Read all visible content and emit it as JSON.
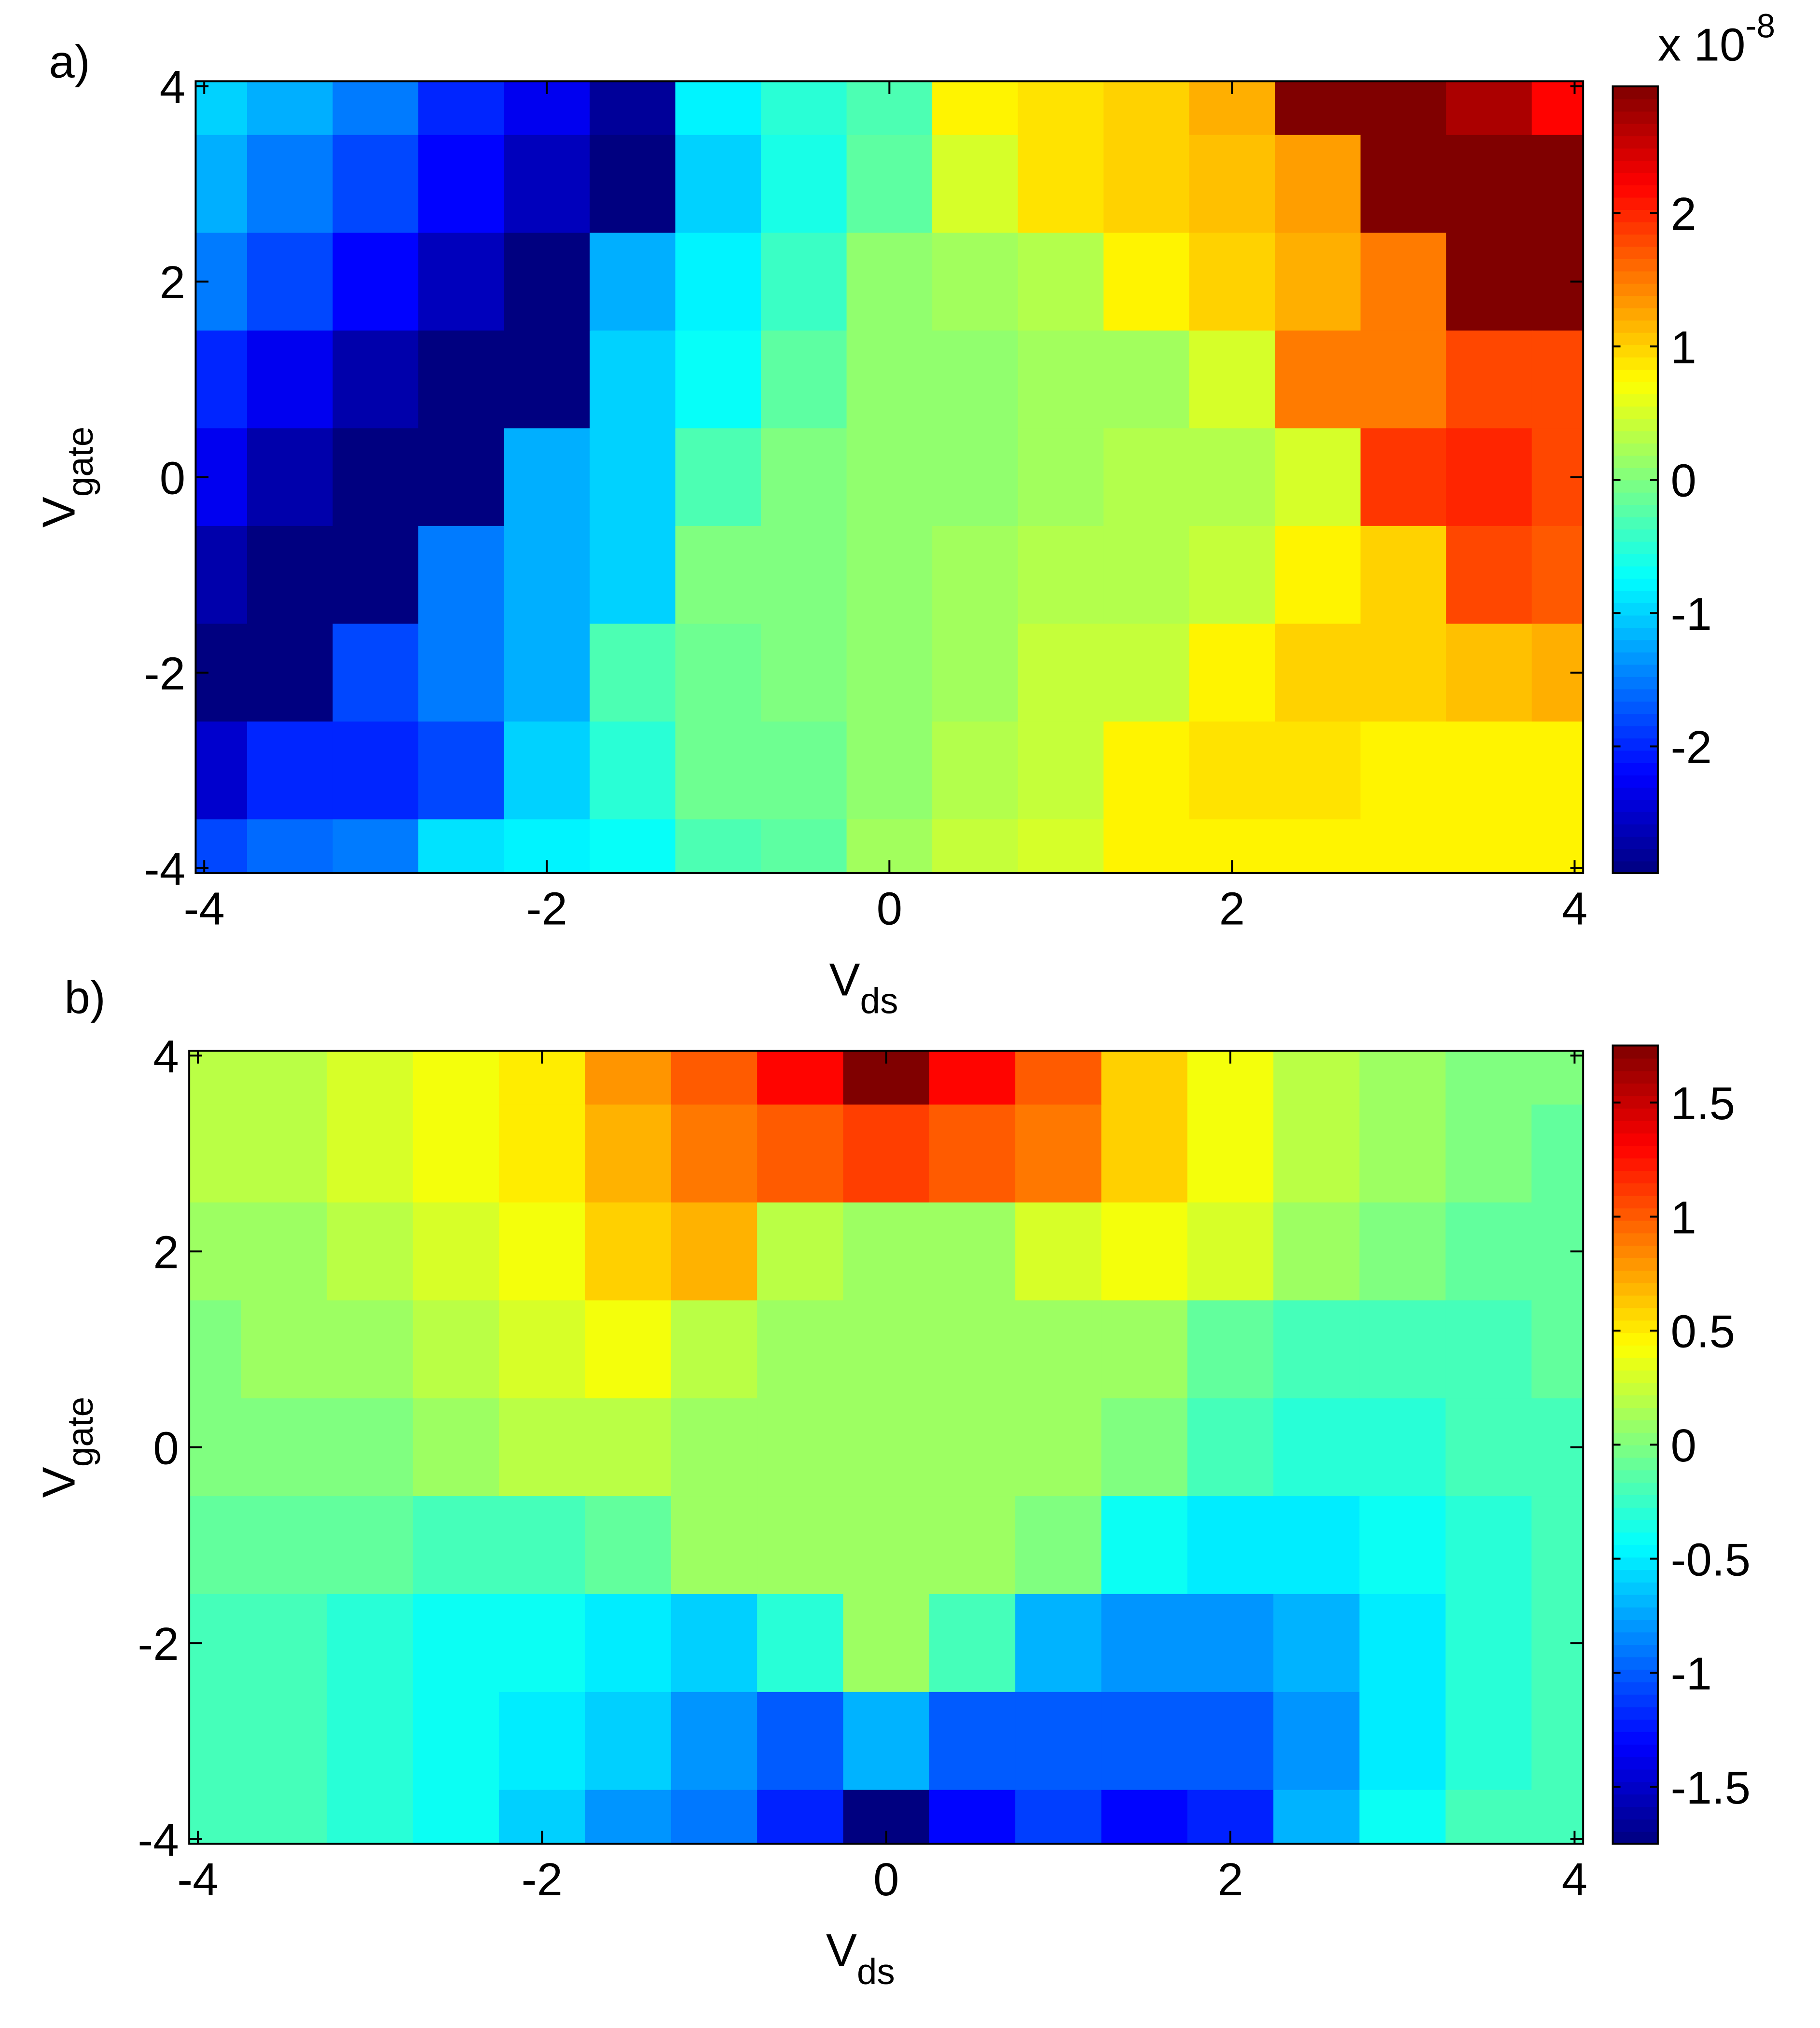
{
  "chart_data": [
    {
      "type": "heatmap",
      "panel_label": "a)",
      "colormap": "jet",
      "x": [
        -4,
        -3.5,
        -3,
        -2.5,
        -2,
        -1.5,
        -1,
        -0.5,
        0,
        0.5,
        1,
        1.5,
        2,
        2.5,
        3,
        3.5,
        4
      ],
      "y": [
        4,
        3,
        2,
        1,
        0,
        -1,
        -2,
        -3,
        -4
      ],
      "z": [
        [
          -1.0,
          -1.2,
          -1.5,
          -2.0,
          -2.3,
          -2.8,
          -0.8,
          -0.5,
          -0.3,
          0.8,
          0.9,
          1.0,
          1.2,
          3.0,
          3.0,
          2.7,
          2.2
        ],
        [
          -1.2,
          -1.5,
          -1.8,
          -2.2,
          -2.6,
          -3.0,
          -1.0,
          -0.6,
          -0.2,
          0.5,
          0.9,
          1.0,
          1.1,
          1.3,
          3.0,
          3.0,
          3.0
        ],
        [
          -1.5,
          -1.8,
          -2.2,
          -2.6,
          -3.0,
          -1.2,
          -0.8,
          -0.4,
          0.1,
          0.2,
          0.3,
          0.8,
          1.0,
          1.2,
          1.5,
          3.0,
          3.0
        ],
        [
          -2.0,
          -2.3,
          -2.7,
          -3.0,
          -3.0,
          -1.0,
          -0.7,
          -0.2,
          0.1,
          0.1,
          0.2,
          0.2,
          0.5,
          1.5,
          1.5,
          1.8,
          1.8
        ],
        [
          -2.3,
          -2.7,
          -3.0,
          -3.0,
          -1.2,
          -1.0,
          -0.3,
          0.0,
          0.1,
          0.1,
          0.2,
          0.3,
          0.3,
          0.5,
          1.9,
          2.0,
          1.8
        ],
        [
          -2.7,
          -3.0,
          -3.0,
          -1.5,
          -1.2,
          -1.0,
          0.0,
          0.0,
          0.1,
          0.2,
          0.3,
          0.3,
          0.4,
          0.8,
          1.0,
          1.8,
          1.7
        ],
        [
          -3.0,
          -3.0,
          -1.8,
          -1.5,
          -1.2,
          -0.3,
          -0.1,
          0.0,
          0.1,
          0.2,
          0.4,
          0.4,
          0.8,
          1.0,
          1.0,
          1.1,
          1.2
        ],
        [
          -2.5,
          -2.0,
          -2.0,
          -1.8,
          -1.0,
          -0.5,
          -0.1,
          -0.1,
          0.1,
          0.3,
          0.4,
          0.8,
          0.9,
          0.9,
          0.8,
          0.8,
          0.8
        ],
        [
          -1.8,
          -1.6,
          -1.5,
          -0.9,
          -0.8,
          -0.7,
          -0.3,
          -0.2,
          0.2,
          0.4,
          0.5,
          0.8,
          0.8,
          0.8,
          0.8,
          0.8,
          0.8
        ]
      ],
      "xlim": [
        -4.05,
        4.05
      ],
      "ylim": [
        -4.05,
        4.05
      ],
      "xticks": [
        -4,
        -2,
        0,
        2,
        4
      ],
      "yticks": [
        -4,
        -2,
        0,
        2,
        4
      ],
      "zlim": [
        -2.95,
        2.95
      ],
      "zticks": [
        -2,
        -1,
        0,
        1,
        2
      ],
      "colorbar_exponent_base": "x 10",
      "colorbar_exponent": "-8",
      "xlabel": "V",
      "xlabel_subscript": "ds",
      "ylabel": "V",
      "ylabel_subscript": "gate"
    },
    {
      "type": "heatmap",
      "panel_label": "b)",
      "colormap": "jet",
      "x": [
        -4,
        -3.5,
        -3,
        -2.5,
        -2,
        -1.5,
        -1,
        -0.5,
        0,
        0.5,
        1,
        1.5,
        2,
        2.5,
        3,
        3.5,
        4
      ],
      "y": [
        4,
        3,
        2,
        1,
        0,
        -1,
        -2,
        -3,
        -4
      ],
      "z": [
        [
          0.2,
          0.2,
          0.3,
          0.4,
          0.5,
          0.8,
          1.0,
          1.3,
          1.75,
          1.3,
          1.0,
          0.6,
          0.4,
          0.2,
          0.1,
          0.0,
          0.0
        ],
        [
          0.2,
          0.2,
          0.3,
          0.4,
          0.5,
          0.7,
          0.9,
          1.0,
          1.1,
          1.0,
          0.9,
          0.6,
          0.4,
          0.2,
          0.1,
          0.0,
          -0.1
        ],
        [
          0.1,
          0.1,
          0.2,
          0.3,
          0.4,
          0.6,
          0.7,
          0.2,
          0.1,
          0.1,
          0.3,
          0.4,
          0.3,
          0.1,
          0.0,
          -0.1,
          -0.1
        ],
        [
          0.0,
          0.1,
          0.1,
          0.2,
          0.3,
          0.4,
          0.2,
          0.1,
          0.1,
          0.1,
          0.1,
          0.1,
          -0.1,
          -0.2,
          -0.2,
          -0.2,
          -0.1
        ],
        [
          0.0,
          0.0,
          0.0,
          0.1,
          0.2,
          0.2,
          0.1,
          0.1,
          0.1,
          0.1,
          0.1,
          0.0,
          -0.2,
          -0.3,
          -0.3,
          -0.2,
          -0.2
        ],
        [
          -0.1,
          -0.1,
          -0.1,
          -0.2,
          -0.2,
          -0.1,
          0.1,
          0.1,
          0.1,
          0.1,
          0.0,
          -0.4,
          -0.5,
          -0.5,
          -0.4,
          -0.3,
          -0.2
        ],
        [
          -0.2,
          -0.2,
          -0.3,
          -0.4,
          -0.4,
          -0.5,
          -0.6,
          -0.3,
          0.1,
          -0.2,
          -0.7,
          -0.8,
          -0.8,
          -0.7,
          -0.5,
          -0.3,
          -0.2
        ],
        [
          -0.2,
          -0.2,
          -0.3,
          -0.4,
          -0.5,
          -0.6,
          -0.8,
          -1.0,
          -0.7,
          -1.0,
          -1.0,
          -1.0,
          -1.0,
          -0.8,
          -0.5,
          -0.3,
          -0.2
        ],
        [
          -0.2,
          -0.2,
          -0.3,
          -0.4,
          -0.6,
          -0.8,
          -0.9,
          -1.2,
          -1.75,
          -1.3,
          -1.1,
          -1.3,
          -1.2,
          -0.7,
          -0.4,
          -0.2,
          -0.2
        ]
      ],
      "xlim": [
        -4.05,
        4.05
      ],
      "ylim": [
        -4.05,
        4.05
      ],
      "xticks": [
        -4,
        -2,
        0,
        2,
        4
      ],
      "yticks": [
        -4,
        -2,
        0,
        2,
        4
      ],
      "zlim": [
        -1.75,
        1.75
      ],
      "zticks": [
        -1.5,
        -1,
        -0.5,
        0,
        0.5,
        1,
        1.5
      ],
      "xlabel": "V",
      "xlabel_subscript": "ds",
      "ylabel": "V",
      "ylabel_subscript": "gate"
    }
  ]
}
